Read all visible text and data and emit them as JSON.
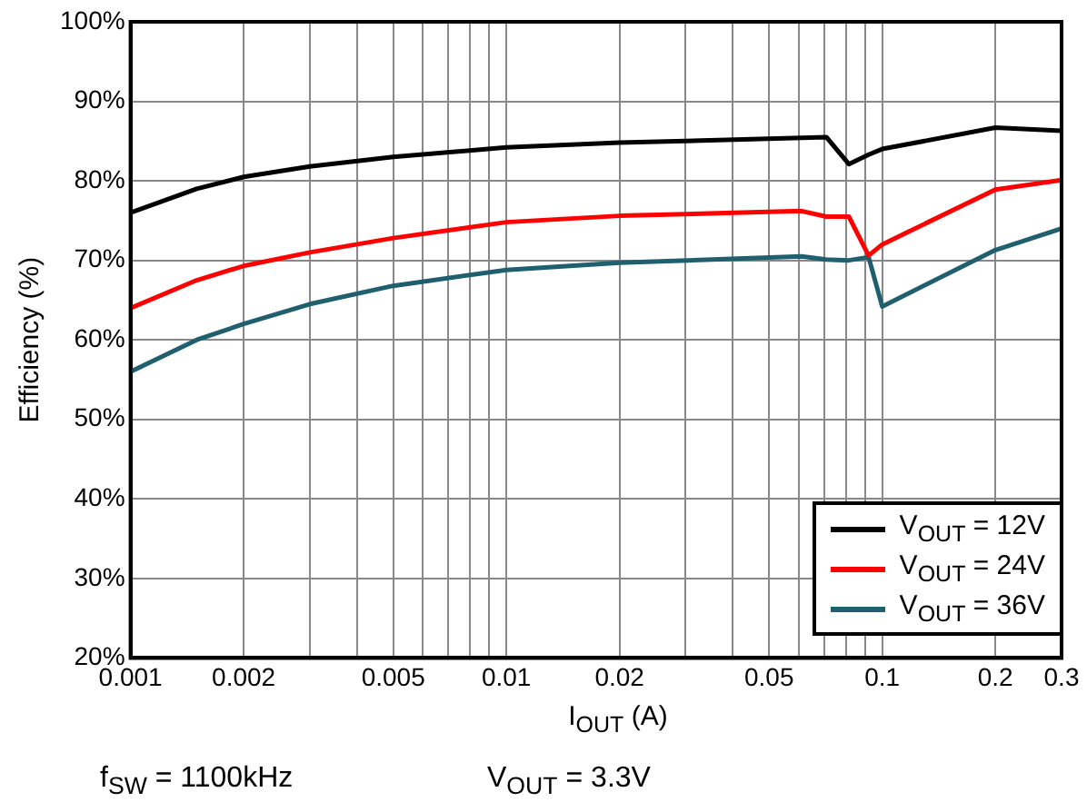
{
  "chart_data": {
    "type": "line",
    "xlabel": "I$_{OUT}$ (A)",
    "ylabel": "Efficiency (%)",
    "log": "x",
    "xlim": [
      0.001,
      0.3
    ],
    "ylim": [
      20,
      100
    ],
    "xticks": [
      0.001,
      0.002,
      {
        "value": 0.003,
        "label": null
      },
      {
        "value": 0.004,
        "label": null
      },
      0.005,
      {
        "value": 0.006,
        "label": null
      },
      {
        "value": 0.007,
        "label": null
      },
      {
        "value": 0.008,
        "label": null
      },
      {
        "value": 0.009,
        "label": null
      },
      0.01,
      0.02,
      {
        "value": 0.03,
        "label": null
      },
      {
        "value": 0.04,
        "label": null
      },
      0.05,
      {
        "value": 0.06,
        "label": null
      },
      {
        "value": 0.07,
        "label": null
      },
      {
        "value": 0.08,
        "label": null
      },
      {
        "value": 0.09,
        "label": null
      },
      0.1,
      0.2,
      0.3
    ],
    "yticks": [
      {
        "value": 20,
        "label": "20%"
      },
      {
        "value": 30,
        "label": "30%"
      },
      {
        "value": 40,
        "label": "40%"
      },
      {
        "value": 50,
        "label": "50%"
      },
      {
        "value": 60,
        "label": "60%"
      },
      {
        "value": 70,
        "label": "70%"
      },
      {
        "value": 80,
        "label": "80%"
      },
      {
        "value": 90,
        "label": "90%"
      },
      {
        "value": 100,
        "label": "100%"
      }
    ],
    "grid": true,
    "legend": "bottom right",
    "marker": "none",
    "line_style": "solid",
    "x": [
      0.001,
      0.0015,
      0.002,
      0.003,
      0.005,
      0.01,
      0.02,
      0.061,
      0.071,
      0.0815,
      0.092,
      0.1,
      0.2,
      0.3
    ],
    "series": [
      {
        "name": "V$_{OUT}$ = 12V",
        "color": "#000000",
        "values": [
          76,
          79,
          80.5,
          81.8,
          83,
          84.2,
          84.8,
          85.4,
          85.5,
          82.1,
          83.3,
          84,
          86.7,
          86.3
        ]
      },
      {
        "name": "V$_{OUT}$ = 24V",
        "color": "#ff0000",
        "values": [
          64,
          67.5,
          69.3,
          71,
          72.8,
          74.8,
          75.6,
          76.2,
          75.5,
          75.5,
          70.6,
          72,
          78.9,
          80.1
        ]
      },
      {
        "name": "V$_{OUT}$ = 36V",
        "color": "#1f5f6e",
        "values": [
          56,
          60,
          62,
          64.5,
          66.8,
          68.8,
          69.7,
          70.5,
          70.1,
          70,
          70.4,
          64.2,
          71.3,
          74
        ]
      }
    ],
    "annotations": [
      "f$_{SW}$ = 1100kHz",
      "V$_{OUT}$ = 3.3V"
    ]
  }
}
